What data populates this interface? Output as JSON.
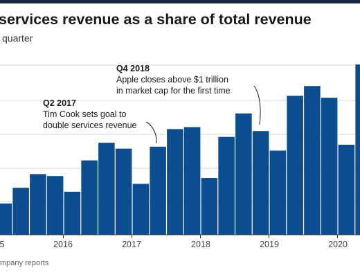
{
  "header": {
    "title": "services revenue as a share of total revenue",
    "subtitle": "quarter"
  },
  "source": "mpany reports",
  "chart_data": {
    "type": "bar",
    "title": "services revenue as a share of total revenue",
    "subtitle": "quarter",
    "ylim": [
      0.4,
      5.0
    ],
    "grid": true,
    "bar_color": "#0b4d8f",
    "x_ticks": [
      "5",
      "2016",
      "2017",
      "2018",
      "2019",
      "2020"
    ],
    "values": [
      1.2,
      1.6,
      1.95,
      1.9,
      1.5,
      2.3,
      2.75,
      2.6,
      1.7,
      2.65,
      3.1,
      3.15,
      1.85,
      2.9,
      3.5,
      3.05,
      2.55,
      3.95,
      4.2,
      3.9,
      2.7,
      4.75
    ],
    "annotations": [
      {
        "heading": "Q2 2017",
        "lines": [
          "Tim Cook sets goal to",
          "double services revenue"
        ]
      },
      {
        "heading": "Q4 2018",
        "lines": [
          "Apple closes above $1 trillion",
          "in market cap for the first time"
        ]
      }
    ]
  }
}
